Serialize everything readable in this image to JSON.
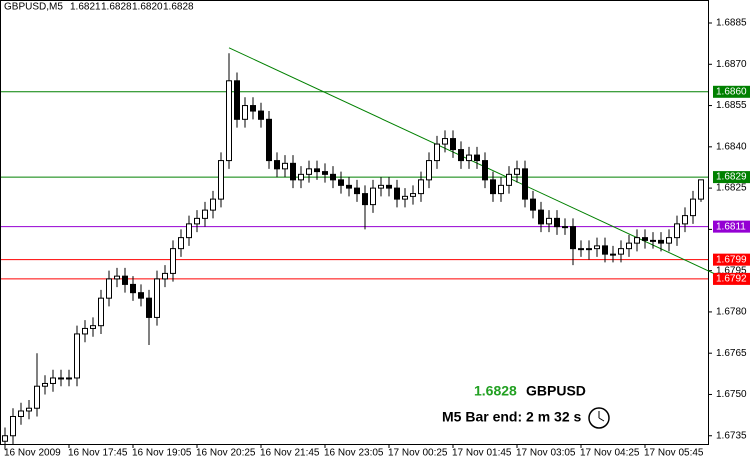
{
  "chart_data": {
    "type": "candlestick",
    "header": [
      "GBPUSD,M5",
      "1.6821",
      "1.6828",
      "1.6820",
      "1.6828"
    ],
    "info": {
      "price": "1.6828",
      "symbol": "GBPUSD",
      "bar_end": "M5 Bar end: 2 m 32 s"
    },
    "categories": [
      "16 Nov 2009",
      "16 Nov 17:45",
      "16 Nov 19:05",
      "16 Nov 20:25",
      "16 Nov 21:45",
      "16 Nov 23:05",
      "17 Nov 00:25",
      "17 Nov 01:45",
      "17 Nov 03:05",
      "17 Nov 04:25",
      "17 Nov 05:45"
    ],
    "ylim": [
      1.6732,
      1.6893
    ],
    "yticks": [
      {
        "value": 1.6735,
        "label": "1.6735"
      },
      {
        "value": 1.675,
        "label": "1.6750"
      },
      {
        "value": 1.6765,
        "label": "1.6765"
      },
      {
        "value": 1.678,
        "label": "1.6780"
      },
      {
        "value": 1.6795,
        "label": "1.6795"
      },
      {
        "value": 1.681,
        "label": "1.6810"
      },
      {
        "value": 1.6825,
        "label": "1.6825"
      },
      {
        "value": 1.684,
        "label": "1.6840"
      },
      {
        "value": 1.6855,
        "label": "1.6855"
      },
      {
        "value": 1.687,
        "label": "1.6870"
      },
      {
        "value": 1.6885,
        "label": "1.6885"
      }
    ],
    "levels": [
      {
        "value": 1.686,
        "label": "1.6860",
        "color": "#008000"
      },
      {
        "value": 1.6829,
        "label": "1.6829",
        "color": "#008000"
      },
      {
        "value": 1.6811,
        "label": "1.6811",
        "color": "#9400d3"
      },
      {
        "value": 1.6799,
        "label": "1.6799",
        "color": "#ff0000"
      },
      {
        "value": 1.6792,
        "label": "1.6792",
        "color": "#ff0000"
      }
    ],
    "trendline": {
      "x": [
        28,
        88.6
      ],
      "y": [
        1.6876,
        1.6794
      ],
      "color": "#008000"
    },
    "ohlc": [
      [
        1.6733,
        1.6738,
        1.673,
        1.6735
      ],
      [
        1.6735,
        1.6745,
        1.6732,
        1.6742
      ],
      [
        1.6742,
        1.6747,
        1.6739,
        1.6744
      ],
      [
        1.6744,
        1.6748,
        1.6741,
        1.6745
      ],
      [
        1.6745,
        1.6765,
        1.6742,
        1.6753
      ],
      [
        1.6753,
        1.6757,
        1.675,
        1.6754
      ],
      [
        1.6754,
        1.6759,
        1.6751,
        1.6756
      ],
      [
        1.6756,
        1.6759,
        1.6753,
        1.6756
      ],
      [
        1.6756,
        1.6759,
        1.6753,
        1.6756
      ],
      [
        1.6756,
        1.6775,
        1.6753,
        1.6772
      ],
      [
        1.6772,
        1.6777,
        1.6769,
        1.6774
      ],
      [
        1.6774,
        1.6778,
        1.6771,
        1.6775
      ],
      [
        1.6775,
        1.6788,
        1.6772,
        1.6785
      ],
      [
        1.6785,
        1.6795,
        1.6782,
        1.6792
      ],
      [
        1.6792,
        1.6796,
        1.6789,
        1.6793
      ],
      [
        1.6793,
        1.6796,
        1.6787,
        1.679
      ],
      [
        1.679,
        1.6793,
        1.6784,
        1.6787
      ],
      [
        1.6787,
        1.679,
        1.6782,
        1.6785
      ],
      [
        1.6785,
        1.6788,
        1.6768,
        1.6778
      ],
      [
        1.6778,
        1.6795,
        1.6775,
        1.6792
      ],
      [
        1.6792,
        1.6797,
        1.6789,
        1.6794
      ],
      [
        1.6794,
        1.6806,
        1.6791,
        1.6803
      ],
      [
        1.6803,
        1.681,
        1.68,
        1.6807
      ],
      [
        1.6807,
        1.6815,
        1.6804,
        1.6812
      ],
      [
        1.6812,
        1.6817,
        1.6809,
        1.6814
      ],
      [
        1.6814,
        1.682,
        1.6811,
        1.6817
      ],
      [
        1.6817,
        1.6824,
        1.6814,
        1.6821
      ],
      [
        1.6821,
        1.6838,
        1.6818,
        1.6835
      ],
      [
        1.6835,
        1.6874,
        1.6832,
        1.6864
      ],
      [
        1.6864,
        1.6867,
        1.6847,
        1.685
      ],
      [
        1.685,
        1.6858,
        1.6847,
        1.6855
      ],
      [
        1.6855,
        1.6858,
        1.685,
        1.6853
      ],
      [
        1.6853,
        1.6856,
        1.6847,
        1.685
      ],
      [
        1.685,
        1.6853,
        1.6832,
        1.6835
      ],
      [
        1.6835,
        1.6838,
        1.6829,
        1.6832
      ],
      [
        1.6832,
        1.6837,
        1.6829,
        1.6834
      ],
      [
        1.6834,
        1.6837,
        1.6825,
        1.6828
      ],
      [
        1.6828,
        1.6833,
        1.6825,
        1.683
      ],
      [
        1.683,
        1.6835,
        1.6827,
        1.6832
      ],
      [
        1.6832,
        1.6835,
        1.6828,
        1.6831
      ],
      [
        1.6831,
        1.6834,
        1.6827,
        1.683
      ],
      [
        1.683,
        1.6833,
        1.6825,
        1.6828
      ],
      [
        1.6828,
        1.6831,
        1.6823,
        1.6826
      ],
      [
        1.6826,
        1.6829,
        1.6822,
        1.6825
      ],
      [
        1.6825,
        1.6828,
        1.682,
        1.6823
      ],
      [
        1.6823,
        1.6826,
        1.681,
        1.6819
      ],
      [
        1.6819,
        1.6828,
        1.6816,
        1.6825
      ],
      [
        1.6825,
        1.6829,
        1.6822,
        1.6826
      ],
      [
        1.6826,
        1.6829,
        1.6822,
        1.6825
      ],
      [
        1.6825,
        1.6828,
        1.6818,
        1.6821
      ],
      [
        1.6821,
        1.6825,
        1.6818,
        1.6822
      ],
      [
        1.6822,
        1.6826,
        1.6819,
        1.6823
      ],
      [
        1.6823,
        1.6831,
        1.682,
        1.6828
      ],
      [
        1.6828,
        1.6838,
        1.6825,
        1.6835
      ],
      [
        1.6835,
        1.6844,
        1.6832,
        1.6841
      ],
      [
        1.6841,
        1.6846,
        1.6838,
        1.6843
      ],
      [
        1.6843,
        1.6846,
        1.6836,
        1.6839
      ],
      [
        1.6839,
        1.6842,
        1.6832,
        1.6835
      ],
      [
        1.6835,
        1.684,
        1.6832,
        1.6837
      ],
      [
        1.6837,
        1.684,
        1.6832,
        1.6835
      ],
      [
        1.6835,
        1.6838,
        1.6825,
        1.6828
      ],
      [
        1.6828,
        1.6831,
        1.682,
        1.6823
      ],
      [
        1.6823,
        1.6829,
        1.682,
        1.6826
      ],
      [
        1.6826,
        1.6833,
        1.6823,
        1.683
      ],
      [
        1.683,
        1.6835,
        1.6827,
        1.6832
      ],
      [
        1.6832,
        1.6835,
        1.6818,
        1.6821
      ],
      [
        1.6821,
        1.6824,
        1.6814,
        1.6817
      ],
      [
        1.6817,
        1.682,
        1.6809,
        1.6812
      ],
      [
        1.6812,
        1.6817,
        1.6809,
        1.6814
      ],
      [
        1.6814,
        1.6817,
        1.6808,
        1.6811
      ],
      [
        1.6811,
        1.6814,
        1.6808,
        1.6811
      ],
      [
        1.6811,
        1.6814,
        1.6797,
        1.6803
      ],
      [
        1.6803,
        1.6806,
        1.68,
        1.6803
      ],
      [
        1.6803,
        1.6806,
        1.6799,
        1.6803
      ],
      [
        1.6803,
        1.6807,
        1.68,
        1.6804
      ],
      [
        1.6804,
        1.6807,
        1.6798,
        1.6801
      ],
      [
        1.6801,
        1.6804,
        1.6798,
        1.6801
      ],
      [
        1.6801,
        1.6806,
        1.6798,
        1.6803
      ],
      [
        1.6803,
        1.6808,
        1.68,
        1.6805
      ],
      [
        1.6805,
        1.681,
        1.6802,
        1.6807
      ],
      [
        1.6807,
        1.681,
        1.6803,
        1.6806
      ],
      [
        1.6806,
        1.6809,
        1.6803,
        1.6806
      ],
      [
        1.6806,
        1.6809,
        1.6802,
        1.6805
      ],
      [
        1.6805,
        1.681,
        1.6802,
        1.6807
      ],
      [
        1.6807,
        1.6815,
        1.6804,
        1.6812
      ],
      [
        1.6812,
        1.6818,
        1.6809,
        1.6815
      ],
      [
        1.6815,
        1.6824,
        1.6812,
        1.6821
      ],
      [
        1.6821,
        1.6828,
        1.682,
        1.6828
      ]
    ]
  }
}
